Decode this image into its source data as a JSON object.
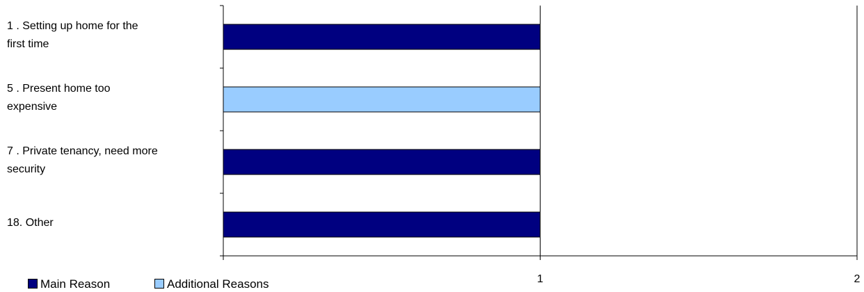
{
  "chart_data": {
    "type": "bar",
    "orientation": "horizontal",
    "categories": [
      "1 . Setting up home for the\nfirst time",
      "5 . Present home too\nexpensive",
      "7 . Private tenancy, need more\nsecurity",
      "18.  Other"
    ],
    "series": [
      {
        "name": "Main Reason",
        "color": "#000080",
        "values": [
          1,
          0,
          1,
          1
        ]
      },
      {
        "name": "Additional Reasons",
        "color": "#99ccff",
        "values": [
          0,
          1,
          0,
          0
        ]
      }
    ],
    "xlim": [
      0,
      2
    ],
    "xticks": [
      "1",
      "2"
    ],
    "grid": "vertical",
    "legend_position": "bottom-left"
  }
}
